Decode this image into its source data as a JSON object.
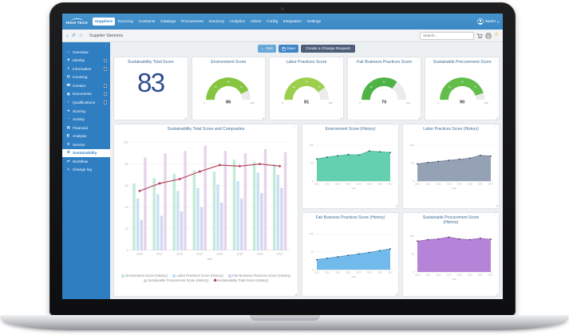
{
  "navbar": {
    "logo": "HIGH TECH",
    "items": [
      {
        "label": "Suppliers",
        "active": true
      },
      {
        "label": "Sourcing",
        "active": false
      },
      {
        "label": "Contracts",
        "active": false
      },
      {
        "label": "Catalogs",
        "active": false
      },
      {
        "label": "Procurement",
        "active": false
      },
      {
        "label": "Invoicing",
        "active": false
      },
      {
        "label": "Analytics",
        "active": false
      },
      {
        "label": "Admin",
        "active": false
      },
      {
        "label": "Config",
        "active": false
      },
      {
        "label": "Integration",
        "active": false
      },
      {
        "label": "Settings",
        "active": false
      }
    ],
    "user_name": "MadH",
    "user_caret": "▾"
  },
  "toolbar": {
    "back_icon": "‹",
    "refresh_icon": "↺",
    "favorite_icon": "☆",
    "breadcrumb": "Supplier Siemens",
    "search_placeholder": "Search...",
    "right_icons": [
      "cart-icon",
      "printer-icon",
      "alert-icon"
    ],
    "alert_glyph": "⚠"
  },
  "actions": {
    "exit_icon": "←",
    "exit": "Exit",
    "save": "Save",
    "create_change_request": "Create a Change Request"
  },
  "sidebar": {
    "menu_icon": "⋮",
    "items": [
      {
        "label": "Overview",
        "icon": "⌂",
        "icon_name": "home-icon",
        "active": false,
        "badge": false
      },
      {
        "label": "Identity",
        "icon": "☻",
        "icon_name": "user-icon",
        "active": false,
        "badge": true
      },
      {
        "label": "Information",
        "icon": "ℹ",
        "icon_name": "info-icon",
        "active": false,
        "badge": true
      },
      {
        "label": "Invoicing",
        "icon": "▤",
        "icon_name": "invoice-icon",
        "active": false,
        "badge": false
      },
      {
        "label": "Contact",
        "icon": "☎",
        "icon_name": "phone-icon",
        "active": false,
        "badge": true
      },
      {
        "label": "Documents",
        "icon": "▣",
        "icon_name": "document-icon",
        "active": false,
        "badge": true
      },
      {
        "label": "Qualifications",
        "icon": "✓",
        "icon_name": "check-icon",
        "active": false,
        "badge": true
      },
      {
        "label": "Scoring",
        "icon": "★",
        "icon_name": "star-icon",
        "active": false,
        "badge": false
      },
      {
        "label": "Activity",
        "icon": "◔",
        "icon_name": "clock-icon",
        "active": false,
        "badge": false
      },
      {
        "label": "Financial",
        "icon": "▦",
        "icon_name": "table-icon",
        "active": false,
        "badge": false
      },
      {
        "label": "Analysis",
        "icon": "◧",
        "icon_name": "chart-icon",
        "active": false,
        "badge": false
      },
      {
        "label": "Service",
        "icon": "⚙",
        "icon_name": "gear-icon",
        "active": false,
        "badge": false
      },
      {
        "label": "Sustainability",
        "icon": "♻",
        "icon_name": "sustainability-icon",
        "active": true,
        "badge": false
      },
      {
        "label": "Workflow",
        "icon": "⇄",
        "icon_name": "workflow-icon",
        "active": false,
        "badge": false
      },
      {
        "label": "Change log",
        "icon": "✎",
        "icon_name": "pencil-icon",
        "active": false,
        "badge": false
      }
    ]
  },
  "card_icons": {
    "menu": "⋮",
    "resize": "◢"
  },
  "chart_data": [
    {
      "type": "number",
      "title": "Sustainability Total Score",
      "value": 83
    },
    {
      "type": "gauge",
      "title": "Environment Score",
      "value": 86,
      "min": 0,
      "max": 100,
      "ticks": [
        25,
        50,
        75
      ],
      "color": "#85c540"
    },
    {
      "type": "gauge",
      "title": "Labor Practices Score",
      "value": 81,
      "min": 0,
      "max": 100,
      "ticks": [
        25,
        50,
        75
      ],
      "color": "#9ccf4e"
    },
    {
      "type": "gauge",
      "title": "Fair Business Practices Score",
      "value": 70,
      "min": 0,
      "max": 100,
      "ticks": [
        25,
        50,
        75
      ],
      "color": "#4cb344"
    },
    {
      "type": "gauge",
      "title": "Sustainable Procurement Score",
      "value": 90,
      "min": 0,
      "max": 100,
      "ticks": [
        25,
        50,
        75
      ],
      "color": "#62bd4a"
    },
    {
      "type": "bar",
      "title": "Sustainability Total Score and Composites",
      "categories": [
        "2010",
        "2011",
        "2012",
        "2013",
        "2014",
        "2015",
        "2016",
        "2017"
      ],
      "xlabel": "Year",
      "ylim": [
        0,
        100
      ],
      "yticks": [
        0,
        20,
        40,
        60,
        80,
        100
      ],
      "legend_position": "bottom",
      "series": [
        {
          "name": "Environment Score (History)",
          "kind": "bar",
          "color": "#bfe8d8",
          "values": [
            62,
            67,
            71,
            74,
            73,
            84,
            82,
            80
          ]
        },
        {
          "name": "Labor Practices Score (History)",
          "kind": "bar",
          "color": "#c4def2",
          "values": [
            48,
            52,
            55,
            58,
            61,
            64,
            72,
            70
          ]
        },
        {
          "name": "Fair Business Practices Score (History)",
          "kind": "bar",
          "color": "#ccd4f0",
          "values": [
            28,
            32,
            36,
            40,
            44,
            48,
            53,
            58
          ]
        },
        {
          "name": "Sustainable Procurement Score (History)",
          "kind": "bar",
          "color": "#e4cfe8",
          "values": [
            86,
            90,
            92,
            97,
            92,
            90,
            94,
            91
          ]
        },
        {
          "name": "Sustainability Total Score (History)",
          "kind": "line",
          "color": "#b03850",
          "values": [
            55,
            62,
            66,
            73,
            79,
            78,
            80,
            78
          ]
        }
      ]
    },
    {
      "type": "area",
      "title": "Environment Score (History)",
      "categories": [
        "2010",
        "2011",
        "2012",
        "2013",
        "2014",
        "2015",
        "2016",
        "2017"
      ],
      "values": [
        62,
        67,
        71,
        74,
        73,
        84,
        82,
        80
      ],
      "color": "#4fc9a4",
      "stroke": "#2fae88",
      "xlabel": "Year",
      "ylim": [
        0,
        100
      ],
      "yticks": [
        0,
        50,
        100
      ]
    },
    {
      "type": "area",
      "title": "Labor Practices Score (History)",
      "categories": [
        "2010",
        "2011",
        "2012",
        "2013",
        "2014",
        "2015",
        "2016",
        "2017"
      ],
      "values": [
        48,
        52,
        55,
        58,
        61,
        64,
        72,
        70
      ],
      "color": "#8694aa",
      "stroke": "#67788f",
      "xlabel": "Year",
      "ylim": [
        0,
        100
      ],
      "yticks": [
        0,
        50,
        100
      ]
    },
    {
      "type": "area",
      "title": "Fair Business Practices Score (History)",
      "categories": [
        "2010",
        "2011",
        "2012",
        "2013",
        "2014",
        "2015",
        "2016",
        "2017"
      ],
      "values": [
        28,
        32,
        36,
        40,
        44,
        48,
        53,
        58
      ],
      "color": "#5fb0e8",
      "stroke": "#3d92d0",
      "xlabel": "Year",
      "ylim": [
        0,
        100
      ],
      "yticks": [
        0,
        50,
        100
      ]
    },
    {
      "type": "area",
      "title": "Sustainable Procurement Score (History)",
      "categories": [
        "2010",
        "2011",
        "2012",
        "2013",
        "2014",
        "2015",
        "2016",
        "2017"
      ],
      "values": [
        86,
        90,
        92,
        97,
        92,
        90,
        94,
        91
      ],
      "color": "#ab72d2",
      "stroke": "#9054b8",
      "xlabel": "Year",
      "ylim": [
        0,
        100
      ],
      "yticks": [
        0,
        50,
        100
      ]
    }
  ]
}
